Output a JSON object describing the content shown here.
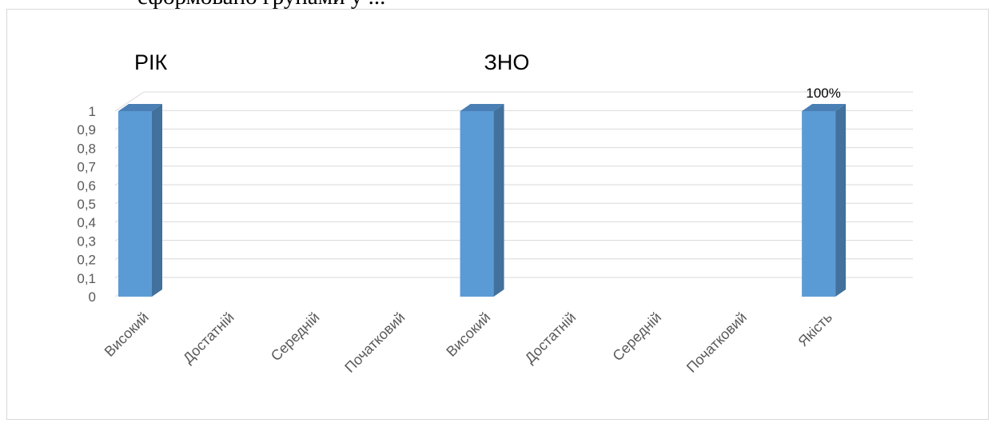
{
  "page": {
    "header_fragment": "сформовано групами у ..."
  },
  "chart_data": {
    "type": "bar",
    "bar_style": "3d-column",
    "groups": [
      {
        "label": "РІК",
        "category_span": [
          0,
          3
        ]
      },
      {
        "label": "ЗНО",
        "category_span": [
          4,
          7
        ]
      }
    ],
    "categories": [
      "Високий",
      "Достатній",
      "Середній",
      "Початковий",
      "Високий",
      "Достатній",
      "Середній",
      "Початковий",
      "Якість"
    ],
    "values": [
      1,
      0,
      0,
      0,
      1,
      0,
      0,
      0,
      1
    ],
    "data_labels": [
      null,
      null,
      null,
      null,
      null,
      null,
      null,
      null,
      "100%"
    ],
    "yticks": [
      "0",
      "0,1",
      "0,2",
      "0,3",
      "0,4",
      "0,5",
      "0,6",
      "0,7",
      "0,8",
      "0,9",
      "1"
    ],
    "ylim": [
      0,
      1
    ],
    "grid": true,
    "legend": "none",
    "colors": {
      "bar_front": "#5b9bd5",
      "bar_side": "#41719c",
      "bar_top": "#4a7fb5",
      "grid": "#d9d9d9",
      "axis_text": "#595959"
    }
  }
}
